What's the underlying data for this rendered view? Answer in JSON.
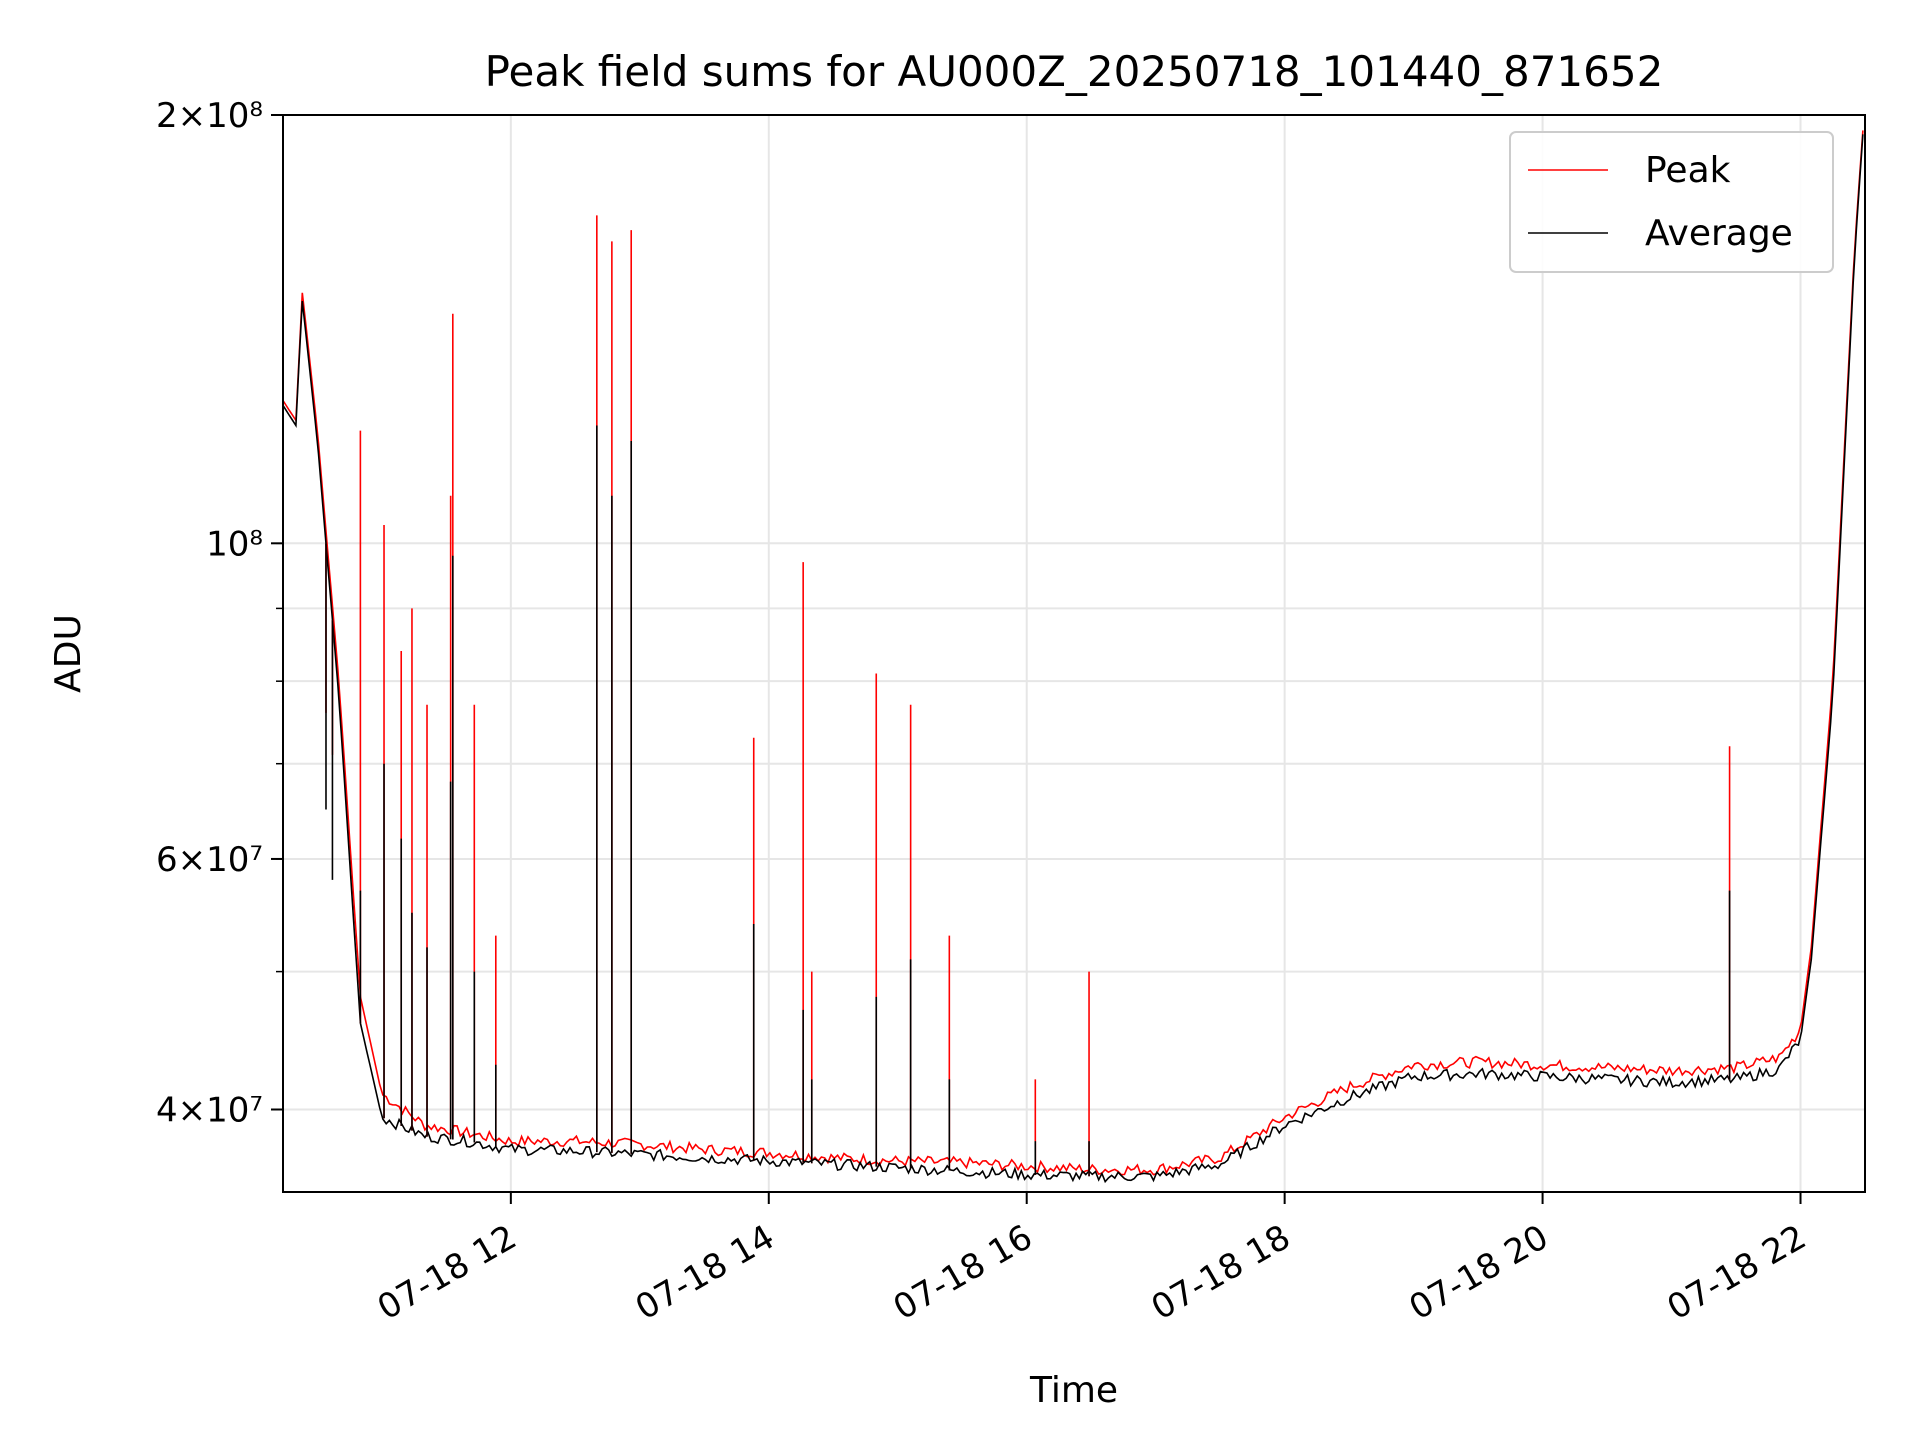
{
  "chart_data": {
    "type": "line",
    "title": "Peak field sums for AU000Z_20250718_101440_871652",
    "xlabel": "Time",
    "ylabel": "ADU",
    "yscale": "log",
    "ylim": [
      35000000,
      200000000
    ],
    "xlim": [
      "2025-07-18 10:14",
      "2025-07-18 22:30"
    ],
    "x_tick_labels": [
      "07-18 12",
      "07-18 14",
      "07-18 16",
      "07-18 18",
      "07-18 20",
      "07-18 22"
    ],
    "x_tick_values": [
      "2025-07-18 12:00",
      "2025-07-18 14:00",
      "2025-07-18 16:00",
      "2025-07-18 18:00",
      "2025-07-18 20:00",
      "2025-07-18 22:00"
    ],
    "y_tick_labels": [
      "4×10⁷",
      "6×10⁷",
      "10⁸",
      "2×10⁸"
    ],
    "y_tick_values": [
      40000000,
      60000000,
      100000000,
      200000000
    ],
    "grid": true,
    "legend_position": "top-right",
    "series": [
      {
        "name": "Peak",
        "color": "#ff0000",
        "x": [
          "2025-07-18 10:14",
          "2025-07-18 10:20",
          "2025-07-18 10:22",
          "2025-07-18 10:23",
          "2025-07-18 10:30",
          "2025-07-18 10:40",
          "2025-07-18 10:50",
          "2025-07-18 11:00",
          "2025-07-18 11:20",
          "2025-07-18 11:40",
          "2025-07-18 12:00",
          "2025-07-18 12:30",
          "2025-07-18 13:00",
          "2025-07-18 13:30",
          "2025-07-18 14:00",
          "2025-07-18 14:30",
          "2025-07-18 15:00",
          "2025-07-18 15:30",
          "2025-07-18 16:00",
          "2025-07-18 16:30",
          "2025-07-18 17:00",
          "2025-07-18 17:30",
          "2025-07-18 18:00",
          "2025-07-18 18:30",
          "2025-07-18 19:00",
          "2025-07-18 19:30",
          "2025-07-18 20:00",
          "2025-07-18 20:30",
          "2025-07-18 21:00",
          "2025-07-18 21:30",
          "2025-07-18 21:50",
          "2025-07-18 22:00",
          "2025-07-18 22:05",
          "2025-07-18 22:15",
          "2025-07-18 22:25",
          "2025-07-18 22:30"
        ],
        "values": [
          126000000,
          122000000,
          140000000,
          150000000,
          120000000,
          80000000,
          48000000,
          41000000,
          39000000,
          38500000,
          38000000,
          38000000,
          37800000,
          37500000,
          37300000,
          37000000,
          36800000,
          36700000,
          36500000,
          36300000,
          36300000,
          37000000,
          39500000,
          41500000,
          43000000,
          43200000,
          43000000,
          42800000,
          42600000,
          42800000,
          43500000,
          45500000,
          52000000,
          80000000,
          160000000,
          205000000
        ]
      },
      {
        "name": "Average",
        "color": "#000000",
        "x": [
          "2025-07-18 10:14",
          "2025-07-18 10:20",
          "2025-07-18 10:22",
          "2025-07-18 10:23",
          "2025-07-18 10:30",
          "2025-07-18 10:40",
          "2025-07-18 10:50",
          "2025-07-18 11:00",
          "2025-07-18 11:20",
          "2025-07-18 11:40",
          "2025-07-18 12:00",
          "2025-07-18 12:30",
          "2025-07-18 13:00",
          "2025-07-18 13:30",
          "2025-07-18 14:00",
          "2025-07-18 14:30",
          "2025-07-18 15:00",
          "2025-07-18 15:30",
          "2025-07-18 16:00",
          "2025-07-18 16:30",
          "2025-07-18 17:00",
          "2025-07-18 17:30",
          "2025-07-18 18:00",
          "2025-07-18 18:30",
          "2025-07-18 19:00",
          "2025-07-18 19:30",
          "2025-07-18 20:00",
          "2025-07-18 20:30",
          "2025-07-18 21:00",
          "2025-07-18 21:30",
          "2025-07-18 21:50",
          "2025-07-18 22:00",
          "2025-07-18 22:05",
          "2025-07-18 22:15",
          "2025-07-18 22:25",
          "2025-07-18 22:30"
        ],
        "values": [
          125000000,
          121000000,
          139000000,
          148000000,
          118000000,
          78000000,
          46000000,
          39500000,
          38300000,
          38000000,
          37500000,
          37400000,
          37200000,
          37000000,
          36800000,
          36600000,
          36400000,
          36200000,
          36000000,
          35900000,
          35900000,
          36600000,
          39000000,
          40800000,
          42200000,
          42400000,
          42200000,
          42000000,
          41800000,
          42000000,
          42700000,
          44800000,
          51000000,
          78000000,
          158000000,
          204000000
        ]
      }
    ],
    "spikes": [
      {
        "time": "2025-07-18 10:34",
        "peak": 76000000,
        "average": 65000000
      },
      {
        "time": "2025-07-18 10:37",
        "peak": 71000000,
        "average": 58000000
      },
      {
        "time": "2025-07-18 10:50",
        "peak": 120000000,
        "average": 57000000
      },
      {
        "time": "2025-07-18 11:01",
        "peak": 103000000,
        "average": 70000000
      },
      {
        "time": "2025-07-18 11:09",
        "peak": 84000000,
        "average": 62000000
      },
      {
        "time": "2025-07-18 11:14",
        "peak": 90000000,
        "average": 55000000
      },
      {
        "time": "2025-07-18 11:21",
        "peak": 77000000,
        "average": 52000000
      },
      {
        "time": "2025-07-18 11:32",
        "peak": 108000000,
        "average": 68000000
      },
      {
        "time": "2025-07-18 11:33",
        "peak": 145000000,
        "average": 98000000
      },
      {
        "time": "2025-07-18 11:43",
        "peak": 77000000,
        "average": 50000000
      },
      {
        "time": "2025-07-18 11:53",
        "peak": 53000000,
        "average": 43000000
      },
      {
        "time": "2025-07-18 12:40",
        "peak": 170000000,
        "average": 121000000
      },
      {
        "time": "2025-07-18 12:47",
        "peak": 163000000,
        "average": 108000000
      },
      {
        "time": "2025-07-18 12:56",
        "peak": 166000000,
        "average": 118000000
      },
      {
        "time": "2025-07-18 13:53",
        "peak": 73000000,
        "average": 54000000
      },
      {
        "time": "2025-07-18 14:16",
        "peak": 97000000,
        "average": 47000000
      },
      {
        "time": "2025-07-18 14:20",
        "peak": 50000000,
        "average": 42000000
      },
      {
        "time": "2025-07-18 14:50",
        "peak": 81000000,
        "average": 48000000
      },
      {
        "time": "2025-07-18 15:06",
        "peak": 77000000,
        "average": 51000000
      },
      {
        "time": "2025-07-18 15:24",
        "peak": 53000000,
        "average": 42000000
      },
      {
        "time": "2025-07-18 16:04",
        "peak": 42000000,
        "average": 38000000
      },
      {
        "time": "2025-07-18 16:29",
        "peak": 50000000,
        "average": 38000000
      },
      {
        "time": "2025-07-18 21:27",
        "peak": 72000000,
        "average": 57000000
      }
    ]
  }
}
